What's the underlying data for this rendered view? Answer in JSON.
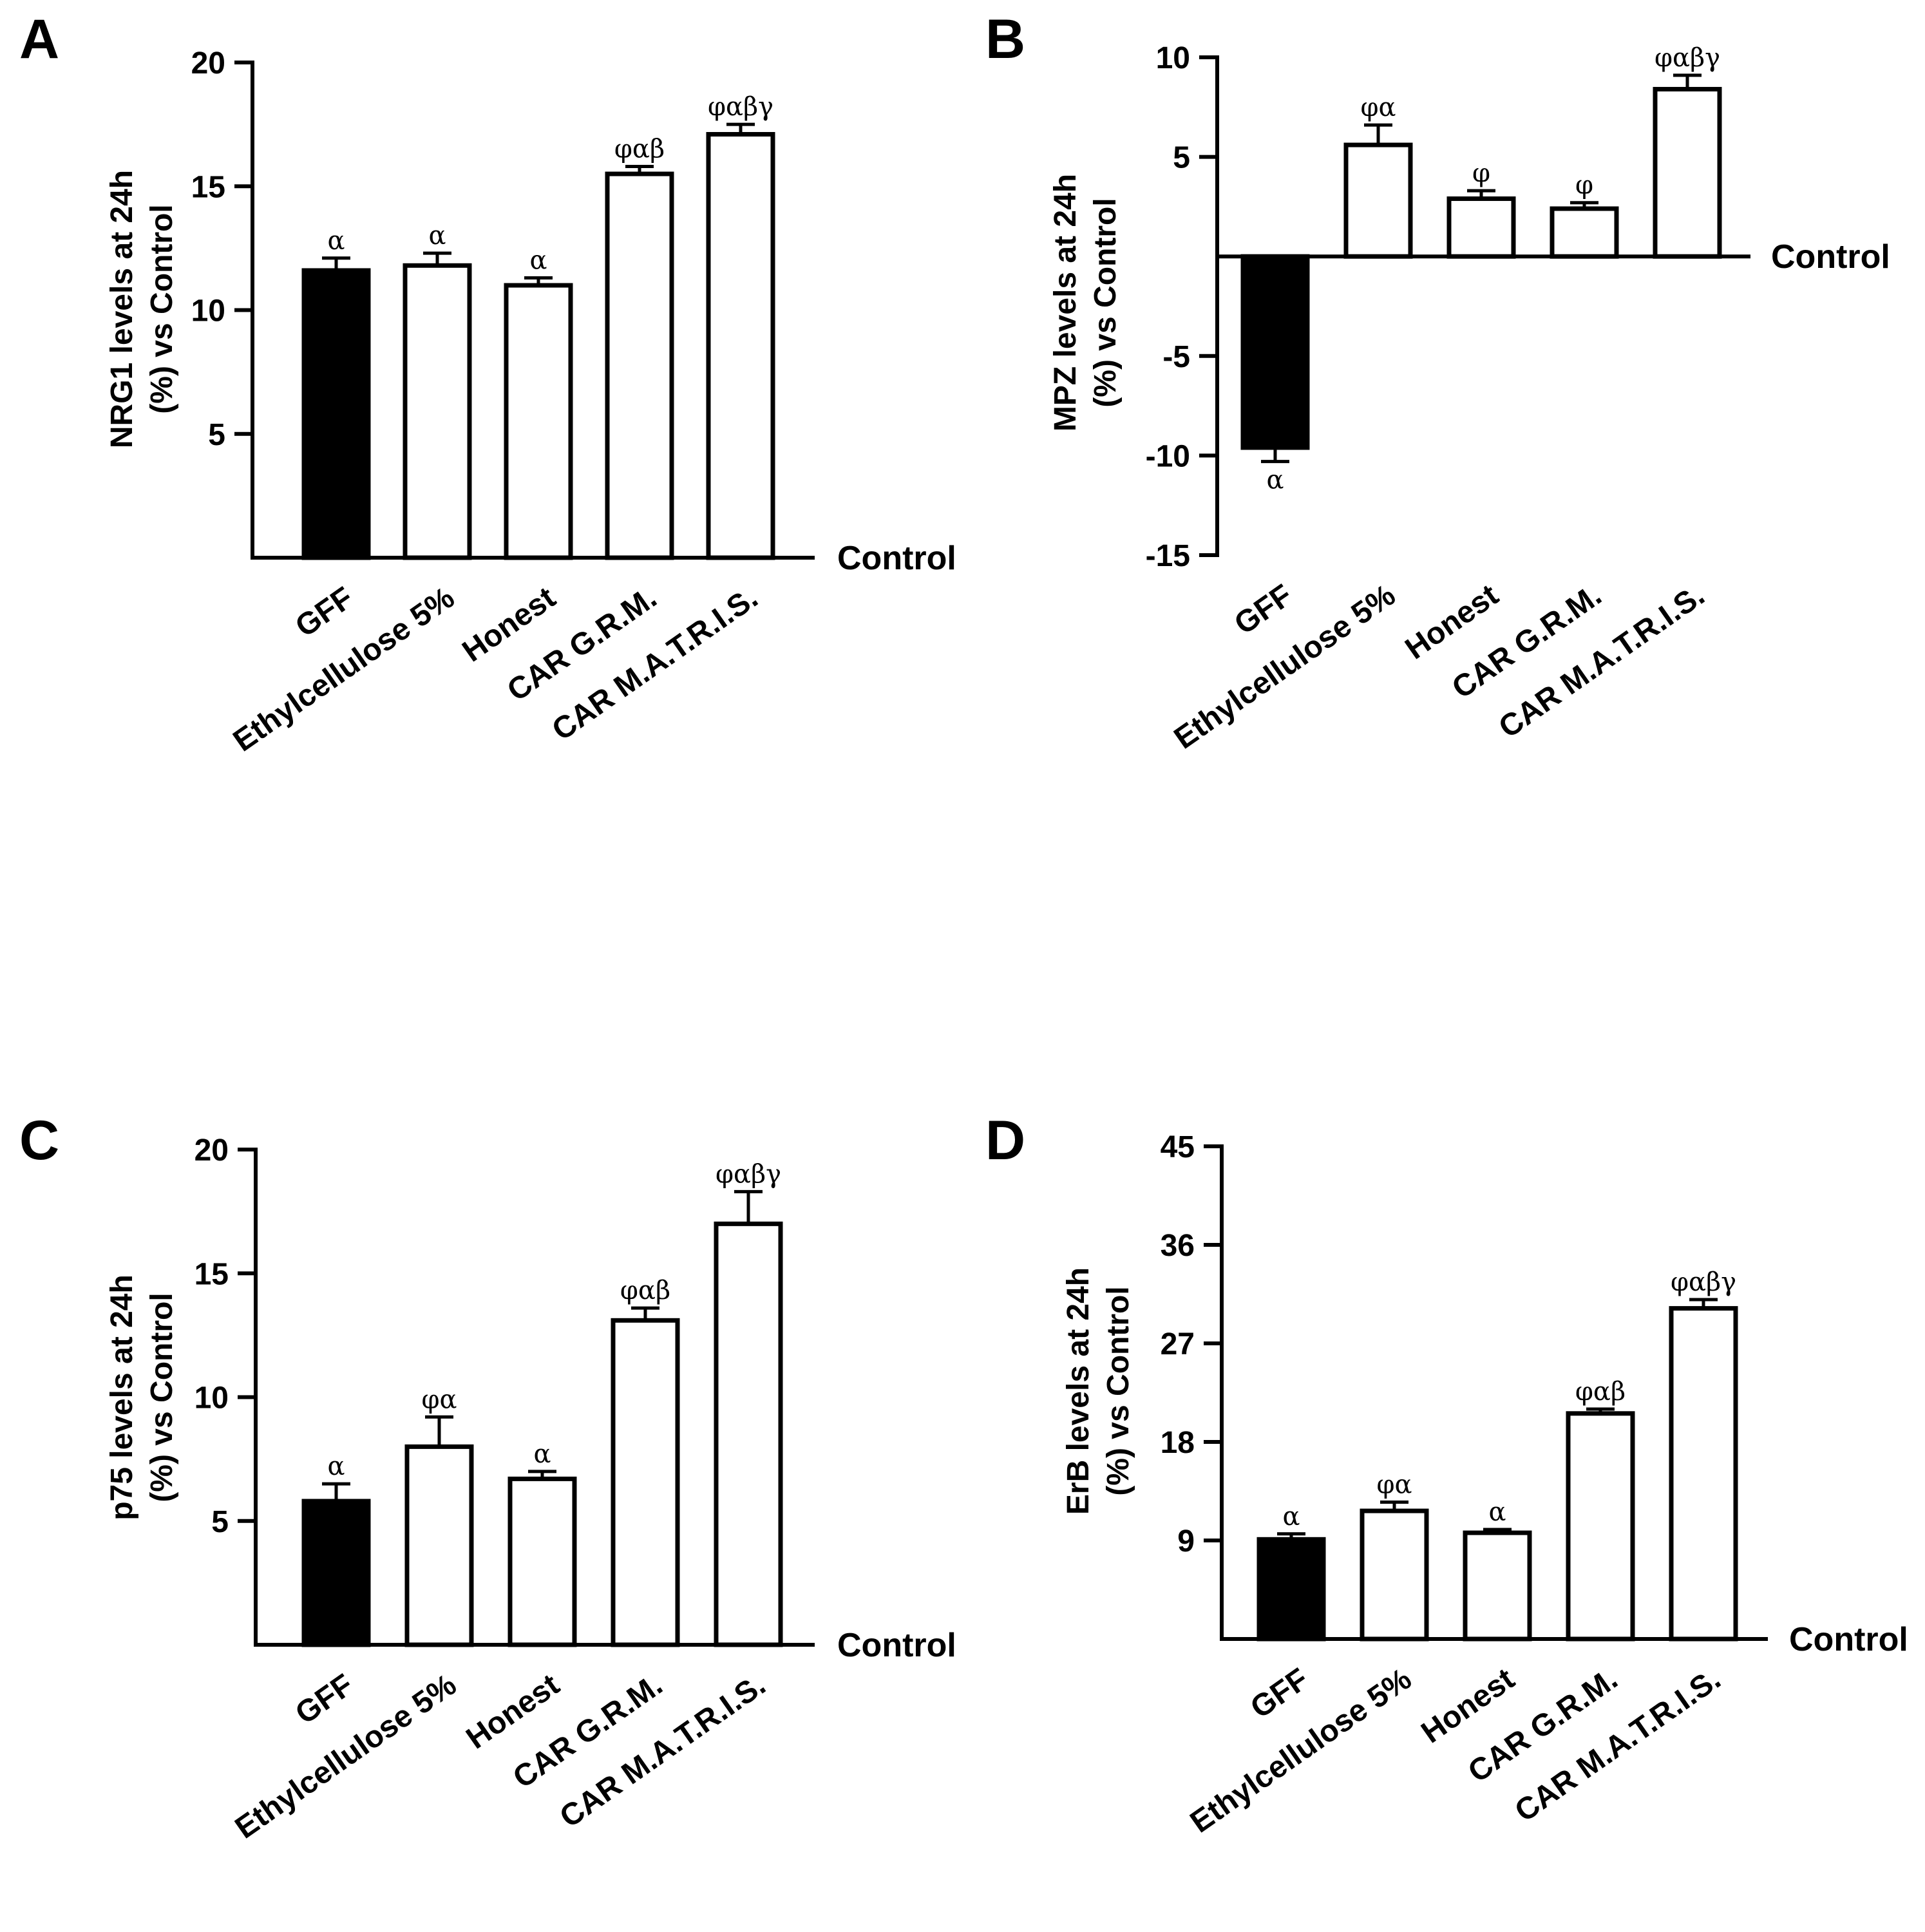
{
  "colors": {
    "filled": "#000000",
    "open": "#ffffff",
    "axis": "#000000"
  },
  "chart_data": [
    {
      "type": "bar",
      "panel": "A",
      "ylabel_lines": [
        "NRG1 levels at 24h",
        "(%) vs Control"
      ],
      "baseline_label": "Control",
      "categories": [
        "GFF",
        "Ethylcellulose 5%",
        "Honest",
        "CAR G.R.M.",
        "CAR M.A.T.R.I.S."
      ],
      "values": [
        11.6,
        11.8,
        11.0,
        15.5,
        17.1
      ],
      "errors": [
        0.5,
        0.5,
        0.3,
        0.3,
        0.4
      ],
      "annotations": [
        "α",
        "α",
        "α",
        "φαβ",
        "φαβγ"
      ],
      "fills": [
        "filled",
        "open",
        "open",
        "open",
        "open"
      ],
      "ylim": [
        0,
        20
      ],
      "yticks": [
        5,
        10,
        15,
        20
      ],
      "ytick_labels": [
        "5",
        "10",
        "15",
        "20"
      ]
    },
    {
      "type": "bar",
      "panel": "B",
      "ylabel_lines": [
        "MPZ levels at 24h",
        "(%) vs Control"
      ],
      "baseline_label": "Control",
      "categories": [
        "GFF",
        "Ethylcellulose 5%",
        "Honest",
        "CAR G.R.M.",
        "CAR M.A.T.R.I.S."
      ],
      "values": [
        -9.6,
        5.6,
        2.9,
        2.4,
        8.4
      ],
      "errors": [
        0.7,
        1.0,
        0.4,
        0.3,
        0.7
      ],
      "annotations": [
        "α",
        "φα",
        "φ",
        "φ",
        "φαβγ"
      ],
      "fills": [
        "filled",
        "open",
        "open",
        "open",
        "open"
      ],
      "ylim": [
        -15,
        10
      ],
      "yticks": [
        -15,
        -10,
        -5,
        5,
        10
      ],
      "ytick_labels": [
        "-15",
        "-10",
        "-5",
        "5",
        "10"
      ]
    },
    {
      "type": "bar",
      "panel": "C",
      "ylabel_lines": [
        "p75 levels at 24h",
        "(%) vs Control"
      ],
      "baseline_label": "Control",
      "categories": [
        "GFF",
        "Ethylcellulose 5%",
        "Honest",
        "CAR G.R.M.",
        "CAR M.A.T.R.I.S."
      ],
      "values": [
        5.8,
        8.0,
        6.7,
        13.1,
        17.0
      ],
      "errors": [
        0.7,
        1.2,
        0.3,
        0.5,
        1.3
      ],
      "annotations": [
        "α",
        "φα",
        "α",
        "φαβ",
        "φαβγ"
      ],
      "fills": [
        "filled",
        "open",
        "open",
        "open",
        "open"
      ],
      "ylim": [
        0,
        20
      ],
      "yticks": [
        5,
        10,
        15,
        20
      ],
      "ytick_labels": [
        "5",
        "10",
        "15",
        "20"
      ]
    },
    {
      "type": "bar",
      "panel": "D",
      "ylabel_lines": [
        "ErB levels at 24h",
        "(%) vs Control"
      ],
      "baseline_label": "Control",
      "categories": [
        "GFF",
        "Ethylcellulose 5%",
        "Honest",
        "CAR G.R.M.",
        "CAR M.A.T.R.I.S."
      ],
      "values": [
        9.1,
        11.7,
        9.7,
        20.6,
        30.2
      ],
      "errors": [
        0.5,
        0.8,
        0.3,
        0.4,
        0.8
      ],
      "annotations": [
        "α",
        "φα",
        "α",
        "φαβ",
        "φαβγ"
      ],
      "fills": [
        "filled",
        "open",
        "open",
        "open",
        "open"
      ],
      "ylim": [
        0,
        45
      ],
      "yticks": [
        9,
        18,
        27,
        36,
        45
      ],
      "ytick_labels": [
        "9",
        "18",
        "27",
        "36",
        "45"
      ]
    }
  ]
}
